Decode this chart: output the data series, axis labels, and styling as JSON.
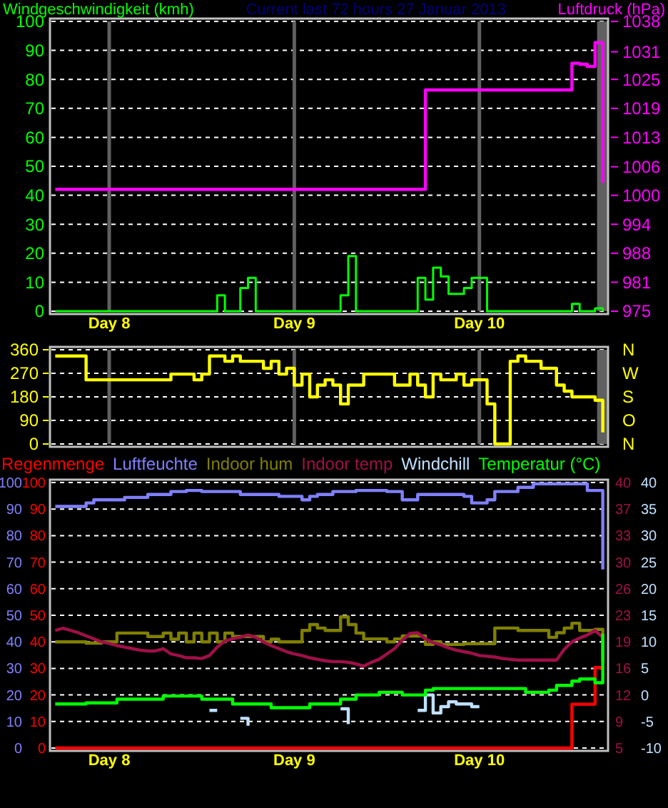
{
  "chart_data": [
    {
      "type": "step",
      "title": "Current last 72 hours 27 Januar 2013",
      "ylabel": "Windgeschwindigkeit (kmh)",
      "y2label": "Luftdruck (hPa)",
      "categories": [
        null,
        null,
        null,
        null,
        null,
        null,
        null,
        "Day 8",
        null,
        null,
        null,
        null,
        null,
        null,
        null,
        null,
        null,
        null,
        null,
        null,
        null,
        null,
        null,
        null,
        null,
        null,
        null,
        null,
        null,
        null,
        null,
        "Day 9",
        null,
        null,
        null,
        null,
        null,
        null,
        null,
        null,
        null,
        null,
        null,
        null,
        null,
        null,
        null,
        null,
        null,
        null,
        null,
        null,
        null,
        null,
        null,
        "Day 10",
        null,
        null,
        null,
        null,
        null,
        null,
        null,
        null,
        null,
        null,
        null,
        null,
        null,
        null,
        null,
        null
      ],
      "ylim": [
        0,
        100
      ],
      "yticks": [
        0,
        10,
        20,
        30,
        40,
        50,
        60,
        70,
        80,
        90,
        100
      ],
      "y2lim": [
        975,
        1038
      ],
      "y2ticks": [
        975,
        {
          "value": 981.3,
          "label": "981"
        },
        {
          "value": 987.6,
          "label": "988"
        },
        {
          "value": 993.9,
          "label": "994"
        },
        {
          "value": 1000.2,
          "label": "1000"
        },
        {
          "value": 1006.4,
          "label": "1006"
        },
        {
          "value": 1012.8,
          "label": "1013"
        },
        {
          "value": 1019.1,
          "label": "1019"
        },
        {
          "value": 1025.4,
          "label": "1025"
        },
        {
          "value": 1031.4,
          "label": "1031"
        },
        1038
      ],
      "grid": true,
      "series": [
        {
          "color": "#00ff00",
          "values": [
            0,
            0,
            0,
            0,
            0,
            0,
            0,
            0,
            0,
            0,
            0,
            0,
            0,
            0,
            0,
            0,
            0,
            0,
            0,
            0,
            0,
            5.5,
            0,
            0,
            8,
            11.5,
            0,
            0,
            0,
            0,
            0,
            0,
            0,
            0,
            0,
            0,
            0,
            5.5,
            19,
            0,
            0,
            0,
            0,
            0,
            0,
            0,
            0,
            11.5,
            4,
            15,
            12,
            6,
            6,
            8,
            11.5,
            11.5,
            0,
            0,
            0,
            0,
            0,
            0,
            0,
            0,
            0,
            0,
            0,
            2.5,
            0,
            0,
            1,
            0
          ]
        },
        {
          "color": "#ff00ff",
          "axis": "y2",
          "values": [
            1001.5,
            1001.5,
            1001.5,
            1001.5,
            1001.5,
            1001.5,
            1001.5,
            1001.5,
            1001.5,
            1001.5,
            1001.5,
            1001.5,
            1001.5,
            1001.5,
            1001.5,
            1001.5,
            1001.5,
            1001.5,
            1001.5,
            1001.5,
            1001.5,
            1001.5,
            1001.5,
            1001.5,
            1001.5,
            1001.5,
            1001.5,
            1001.5,
            1001.5,
            1001.5,
            1001.5,
            1001.5,
            1001.5,
            1001.5,
            1001.5,
            1001.5,
            1001.5,
            1001.5,
            1001.5,
            1001.5,
            1001.5,
            1001.5,
            1001.5,
            1001.5,
            1001.5,
            1001.5,
            1001.5,
            1001.5,
            1023.1,
            1023.1,
            1023.1,
            1023.1,
            1023.1,
            1023.1,
            1023.1,
            1023.1,
            1023.1,
            1023.1,
            1023.1,
            1023.1,
            1023.1,
            1023.1,
            1023.1,
            1023.1,
            1023.1,
            1023.1,
            1023.1,
            1028.9,
            1028.7,
            1028.2,
            1033.4,
            1002.9
          ]
        }
      ]
    },
    {
      "type": "step",
      "categories": [
        null,
        null,
        null,
        null,
        null,
        null,
        null,
        null,
        null,
        null,
        null,
        null,
        null,
        null,
        null,
        null,
        null,
        null,
        null,
        null,
        null,
        null,
        null,
        null,
        null,
        null,
        null,
        null,
        null,
        null,
        null,
        null,
        null,
        null,
        null,
        null,
        null,
        null,
        null,
        null,
        null,
        null,
        null,
        null,
        null,
        null,
        null,
        null,
        null,
        null,
        null,
        null,
        null,
        null,
        null,
        null,
        null,
        null,
        null,
        null,
        null,
        null,
        null,
        null,
        null,
        null,
        null,
        null,
        null,
        null,
        null,
        null
      ],
      "ylim": [
        0,
        360
      ],
      "yticks": [
        0,
        90,
        180,
        270,
        360
      ],
      "annotations": [
        "N",
        "W",
        "S",
        "O",
        "N"
      ],
      "tick_labels": "y",
      "grid": true,
      "series": [
        {
          "color": "#ffff00",
          "values": [
            336,
            336,
            336,
            336,
            245,
            245,
            245,
            245,
            245,
            245,
            245,
            245,
            245,
            245,
            245,
            267,
            267,
            267,
            245,
            267,
            336,
            336,
            316,
            336,
            316,
            316,
            316,
            289,
            316,
            267,
            289,
            225,
            267,
            180,
            225,
            245,
            225,
            153,
            225,
            225,
            267,
            267,
            267,
            267,
            225,
            225,
            267,
            225,
            180,
            267,
            245,
            245,
            267,
            225,
            245,
            245,
            153,
            0,
            0,
            316,
            336,
            316,
            316,
            289,
            289,
            225,
            202,
            180,
            180,
            180,
            167,
            44
          ]
        }
      ]
    },
    {
      "type": "step",
      "categories": [
        null,
        null,
        null,
        null,
        null,
        null,
        null,
        "Day 8",
        null,
        null,
        null,
        null,
        null,
        null,
        null,
        null,
        null,
        null,
        null,
        null,
        null,
        null,
        null,
        null,
        null,
        null,
        null,
        null,
        null,
        null,
        null,
        "Day 9",
        null,
        null,
        null,
        null,
        null,
        null,
        null,
        null,
        null,
        null,
        null,
        null,
        null,
        null,
        null,
        null,
        null,
        null,
        null,
        null,
        null,
        null,
        null,
        "Day 10",
        null,
        null,
        null,
        null,
        null,
        null,
        null,
        null,
        null,
        null,
        null,
        null,
        null,
        null,
        null,
        null
      ],
      "ylim": [
        0,
        100
      ],
      "yticks": [
        0,
        10,
        20,
        30,
        40,
        50,
        60,
        70,
        80,
        90,
        100
      ],
      "y2lim": [
        5,
        40
      ],
      "y2ticks": [
        5,
        {
          "value": 8.5,
          "label": "9"
        },
        12,
        {
          "value": 15.5,
          "label": "16"
        },
        19,
        {
          "value": 22.5,
          "label": "23"
        },
        26,
        {
          "value": 29.5,
          "label": "30"
        },
        33,
        {
          "value": 36.5,
          "label": "37"
        },
        40
      ],
      "y3lim": [
        -10,
        40
      ],
      "y3ticks": [
        -10,
        -5,
        0,
        5,
        10,
        15,
        20,
        25,
        30,
        35,
        40
      ],
      "grid": "y",
      "legend": "top",
      "annotations": [
        "100",
        "90",
        "80",
        "70",
        "60",
        "50",
        "40",
        "30",
        "20",
        "10",
        "0"
      ],
      "series": [
        {
          "name": "Regenmenge",
          "color": "#ff0000",
          "values": [
            0,
            0,
            0,
            0,
            0,
            0,
            0,
            0,
            0,
            0,
            0,
            0,
            0,
            0,
            0,
            0,
            0,
            0,
            0,
            0,
            0,
            0,
            0,
            0,
            0,
            0,
            0,
            0,
            0,
            0,
            0,
            0,
            0,
            0,
            0,
            0,
            0,
            0,
            0,
            0,
            0,
            0,
            0,
            0,
            0,
            0,
            0,
            0,
            0,
            0,
            0,
            0,
            0,
            0,
            0,
            0,
            0,
            0,
            0,
            0,
            0,
            0,
            0,
            0,
            0,
            0,
            0,
            16.5,
            16.5,
            16.5,
            30.3,
            30.3
          ]
        },
        {
          "name": "Luftfeuchte",
          "color": "#8080ff",
          "values": [
            91,
            91,
            91,
            91,
            92.3,
            93.5,
            93.5,
            93.5,
            93.5,
            94.4,
            94.4,
            94.4,
            95.5,
            95.5,
            95.5,
            96.6,
            96.6,
            97,
            97,
            96.6,
            96.6,
            96.6,
            96.6,
            96.6,
            95.5,
            95.5,
            95.5,
            95.5,
            95.5,
            94.8,
            94.8,
            94.8,
            93.5,
            94.8,
            95.5,
            95.5,
            96.6,
            96.6,
            96.6,
            97,
            97,
            97,
            97,
            96.6,
            96.6,
            93.5,
            93.5,
            95.5,
            95.5,
            95.5,
            95.5,
            95.5,
            95.5,
            94.8,
            92.3,
            92.3,
            93.5,
            96.6,
            96.6,
            96.6,
            98.2,
            98.2,
            99.5,
            99.5,
            99.5,
            99.5,
            99.5,
            99.5,
            99.5,
            97,
            97,
            67.3
          ]
        },
        {
          "name": "Indoor hum",
          "color": "#808000",
          "values": [
            40,
            40,
            40,
            40,
            39.5,
            39.5,
            40,
            40,
            43.3,
            43.3,
            43.3,
            43.3,
            42,
            42,
            43.3,
            41,
            43.3,
            40,
            43.3,
            40,
            43.3,
            40,
            43.3,
            42,
            42,
            42,
            42,
            40,
            41,
            40,
            40,
            40,
            44.3,
            46.5,
            45.2,
            44.3,
            44.3,
            49.4,
            46.5,
            43.3,
            41.1,
            41.1,
            41.1,
            40,
            41.1,
            42.2,
            42.2,
            42.2,
            39,
            40,
            39,
            39,
            39,
            39.3,
            39.3,
            39.3,
            39.3,
            45.2,
            45.2,
            45.2,
            44.3,
            44.3,
            44.3,
            44.3,
            41.7,
            43.4,
            45.2,
            47,
            44.3,
            44.3,
            44.7,
            32.7
          ]
        },
        {
          "name": "Indoor temp",
          "color": "#a01048",
          "type": "line",
          "axis": "y2",
          "values": [
            20.5,
            20.8,
            20.5,
            20.2,
            19.8,
            19.4,
            19,
            18.8,
            18.5,
            18.3,
            18.1,
            17.9,
            17.8,
            17.8,
            18.1,
            17.4,
            17.2,
            16.9,
            16.9,
            16.8,
            17.2,
            18.3,
            19.1,
            19.4,
            19.6,
            19.9,
            19.6,
            19,
            18.5,
            18.1,
            17.7,
            17.4,
            17.2,
            16.9,
            16.7,
            16.5,
            16.4,
            16.4,
            16.3,
            16.1,
            15.8,
            16.3,
            16.7,
            17.4,
            18.1,
            19.2,
            20.1,
            20.2,
            19.4,
            18.9,
            18.6,
            18.2,
            17.9,
            17.7,
            17.5,
            17.2,
            17.1,
            17,
            16.8,
            16.7,
            16.6,
            16.6,
            16.6,
            16.6,
            16.6,
            16.6,
            18,
            19,
            19.5,
            19.9,
            20.5,
            19.6
          ]
        },
        {
          "name": "Windchill",
          "color": "#c0e0ff",
          "axis": "y3",
          "values": [
            null,
            null,
            null,
            null,
            null,
            null,
            null,
            null,
            null,
            null,
            null,
            null,
            null,
            null,
            null,
            null,
            null,
            null,
            null,
            null,
            -2.9,
            -2.9,
            null,
            null,
            -4.4,
            -5.8,
            null,
            null,
            null,
            null,
            null,
            null,
            null,
            null,
            null,
            null,
            null,
            -2.6,
            -5.5,
            null,
            null,
            null,
            null,
            null,
            null,
            null,
            null,
            -2.9,
            0,
            -3.4,
            -2.2,
            -1.3,
            -1.7,
            -1.7,
            -2.2,
            -2.2,
            null,
            null,
            null,
            null,
            null,
            null,
            null,
            null,
            null,
            null,
            null,
            null,
            null,
            null,
            null,
            null
          ]
        },
        {
          "name": "Temperatur (°C)",
          "color": "#00ff00",
          "axis": "y3",
          "values": [
            -1.7,
            -1.7,
            -1.7,
            -1.7,
            -1.5,
            -1.5,
            -1.5,
            -1.5,
            -0.8,
            -0.8,
            -0.8,
            -0.8,
            -0.8,
            -0.8,
            -0.2,
            -0.2,
            -0.2,
            -0.2,
            -0.2,
            -0.8,
            -0.8,
            -0.8,
            -0.8,
            -1.7,
            -1.7,
            -1.7,
            -1.7,
            -1.7,
            -2.4,
            -2.4,
            -2.4,
            -2.4,
            -2.4,
            -1.7,
            -1.7,
            -1.7,
            -1.7,
            -0.8,
            -0.8,
            0,
            0,
            0,
            0.5,
            0.5,
            0.5,
            0,
            0,
            0,
            0.9,
            1.2,
            1.2,
            1.2,
            1.2,
            1.2,
            1.2,
            1.2,
            1.2,
            1.2,
            1.2,
            1.2,
            1.2,
            0.5,
            0.5,
            0.5,
            0.9,
            1.8,
            1.8,
            2.6,
            3,
            3,
            2.3,
            11.5
          ]
        }
      ]
    }
  ]
}
